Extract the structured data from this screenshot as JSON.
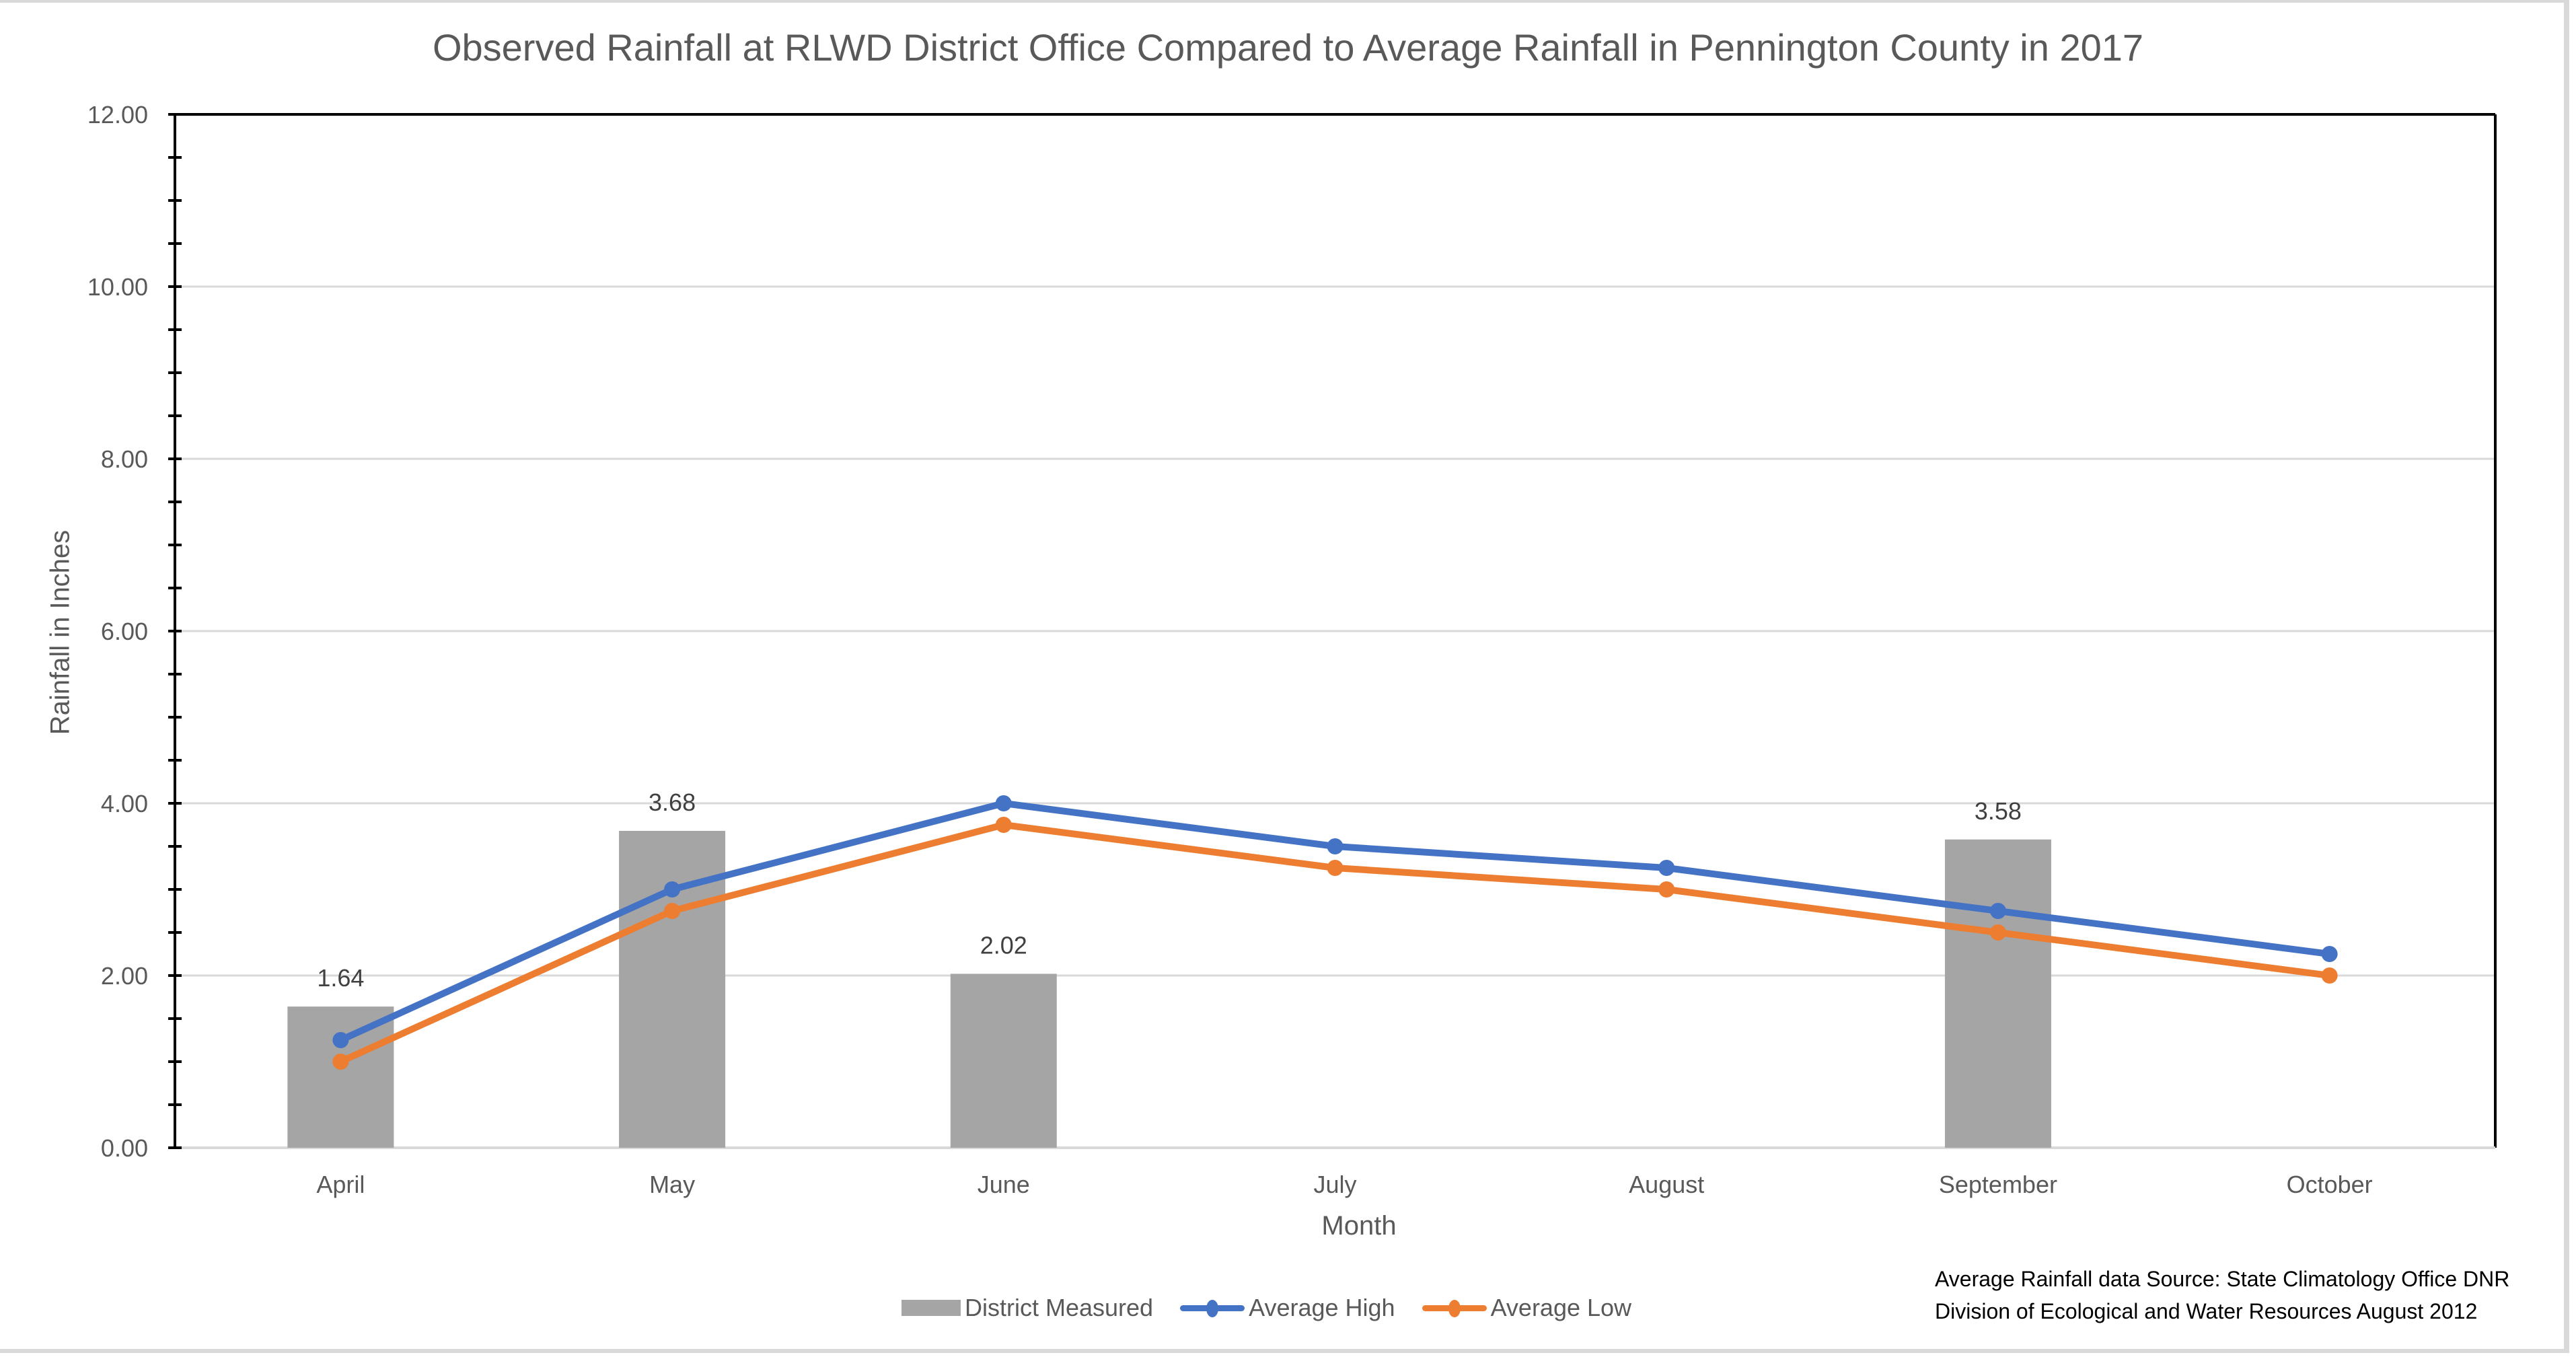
{
  "chart_data": {
    "type": "bar+line",
    "title": "Observed Rainfall at RLWD District Office Compared to Average Rainfall in Pennington County in 2017",
    "xlabel": "Month",
    "ylabel": "Rainfall in Inches",
    "ylim": [
      0,
      12
    ],
    "y_major_step": 2,
    "y_minor_step": 0.5,
    "y_tick_labels": [
      "0.00",
      "2.00",
      "4.00",
      "6.00",
      "8.00",
      "10.00",
      "12.00"
    ],
    "grid": true,
    "legend_position": "bottom",
    "categories": [
      "April",
      "May",
      "June",
      "July",
      "August",
      "September",
      "October"
    ],
    "series": [
      {
        "name": "District Measured",
        "kind": "bar",
        "color": "#a5a5a5",
        "values": [
          1.64,
          3.68,
          2.02,
          null,
          null,
          3.58,
          null
        ],
        "data_labels": [
          "1.64",
          "3.68",
          "2.02",
          "",
          "",
          "3.58",
          ""
        ]
      },
      {
        "name": "Average High",
        "kind": "line",
        "color": "#4472c4",
        "values": [
          1.25,
          3.0,
          4.0,
          3.5,
          3.25,
          2.75,
          2.25
        ]
      },
      {
        "name": "Average Low",
        "kind": "line",
        "color": "#ed7d31",
        "values": [
          1.0,
          2.75,
          3.75,
          3.25,
          3.0,
          2.5,
          2.0
        ]
      }
    ],
    "annotation": [
      "Average Rainfall data Source: State Climatology Office DNR",
      "Division of Ecological and Water Resources August 2012"
    ]
  }
}
